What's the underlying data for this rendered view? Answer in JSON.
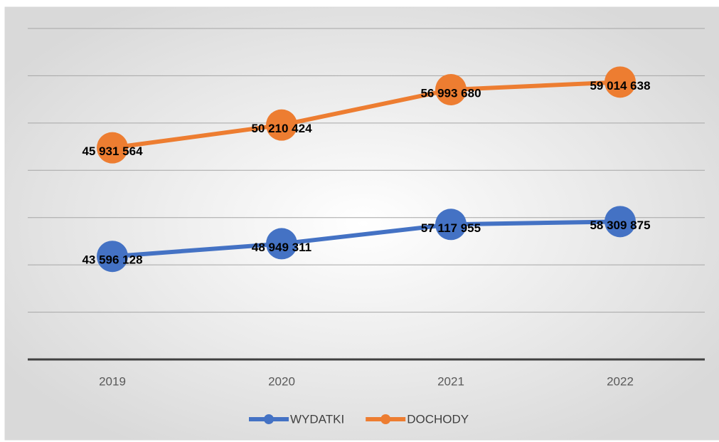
{
  "chart_data": {
    "type": "line",
    "stacked": true,
    "categories": [
      "2019",
      "2020",
      "2021",
      "2022"
    ],
    "series": [
      {
        "name": "WYDATKI",
        "color": "#4472c4",
        "values": [
          43596128,
          48949311,
          57117955,
          58309875
        ],
        "value_labels": [
          "43 596 128",
          "48 949 311",
          "57 117 955",
          "58 309 875"
        ]
      },
      {
        "name": "DOCHODY",
        "color": "#ed7d31",
        "values": [
          45931564,
          50210424,
          56993680,
          59014638
        ],
        "value_labels": [
          "45 931 564",
          "50 210 424",
          "56 993 680",
          "59 014 638"
        ]
      }
    ],
    "ylim": [
      0,
      140000000
    ],
    "yticks": [
      0,
      20000000,
      40000000,
      60000000,
      80000000,
      100000000,
      120000000,
      140000000
    ],
    "grid": true,
    "legend": "bottom"
  }
}
